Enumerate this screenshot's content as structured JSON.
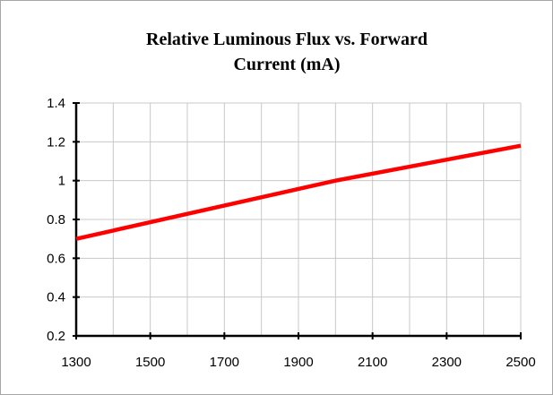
{
  "chart_data": {
    "type": "line",
    "title_line1": "Relative Luminous Flux vs. Forward",
    "title_line2": "Current (mA)",
    "xlabel": "",
    "ylabel": "",
    "xlim": [
      1300,
      2500
    ],
    "ylim": [
      0.2,
      1.4
    ],
    "x_ticks": [
      1300,
      1500,
      1700,
      1900,
      2100,
      2300,
      2500
    ],
    "x_tick_labels": [
      "1300",
      "1500",
      "1700",
      "1900",
      "2100",
      "2300",
      "2500"
    ],
    "y_ticks": [
      0.2,
      0.4,
      0.6,
      0.8,
      1.0,
      1.2,
      1.4
    ],
    "y_tick_labels": [
      "0.2",
      "0.4",
      "0.6",
      "0.8",
      "1",
      "1.2",
      "1.4"
    ],
    "x_gridlines": [
      1300,
      1400,
      1500,
      1600,
      1700,
      1800,
      1900,
      2000,
      2100,
      2200,
      2300,
      2400,
      2500
    ],
    "grid": true,
    "legend": "none",
    "series": [
      {
        "color": "#ff0000",
        "x": [
          1300,
          2000,
          2500
        ],
        "y": [
          0.7,
          1.0,
          1.18
        ]
      }
    ]
  }
}
